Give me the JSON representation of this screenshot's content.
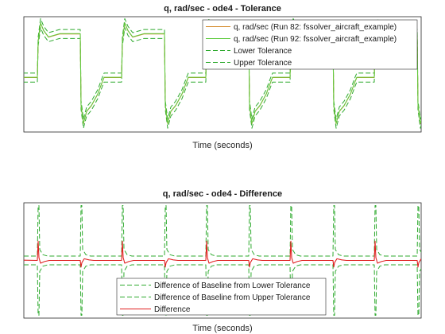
{
  "chart_data": [
    {
      "type": "line",
      "title": "q, rad/sec - ode4 - Tolerance",
      "xlabel": "Time (seconds)",
      "ylabel": "",
      "grid": false,
      "legend_position": "top-right",
      "period": 1,
      "segment_time_range": [
        0,
        5
      ],
      "features": {
        "baseline_level": 0.1,
        "high_level": 0.78,
        "low_level": -0.38,
        "peak_value": 0.95,
        "trough_value": -0.62
      },
      "tolerance_band_offset": 0.07,
      "series": [
        {
          "name": "q, rad/sec (Run 82: fssolver_aircraft_example)",
          "color": "#d58a2a",
          "style": "solid"
        },
        {
          "name": "q, rad/sec (Run 92: fssolver_aircraft_example)",
          "color": "#5fcc3f",
          "style": "solid"
        },
        {
          "name": "Lower Tolerance",
          "color": "#2eaa2e",
          "style": "dashed"
        },
        {
          "name": "Upper Tolerance",
          "color": "#2eaa2e",
          "style": "dashed"
        }
      ]
    },
    {
      "type": "line",
      "title": "q, rad/sec - ode4 - Difference",
      "xlabel": "Time (seconds)",
      "ylabel": "",
      "grid": false,
      "legend_position": "bottom-center",
      "period": 1,
      "segment_time_range": [
        0,
        5
      ],
      "features": {
        "tolerance_plateau": 0.08,
        "tolerance_spike": 1.0,
        "difference_spike": 0.35,
        "difference_dip": -0.12
      },
      "series": [
        {
          "name": "Difference of Baseline from Lower Tolerance",
          "color": "#2eaa2e",
          "style": "dashed"
        },
        {
          "name": "Difference of Baseline from Upper Tolerance",
          "color": "#2eaa2e",
          "style": "dashed"
        },
        {
          "name": "Difference",
          "color": "#e02020",
          "style": "solid"
        }
      ]
    }
  ]
}
